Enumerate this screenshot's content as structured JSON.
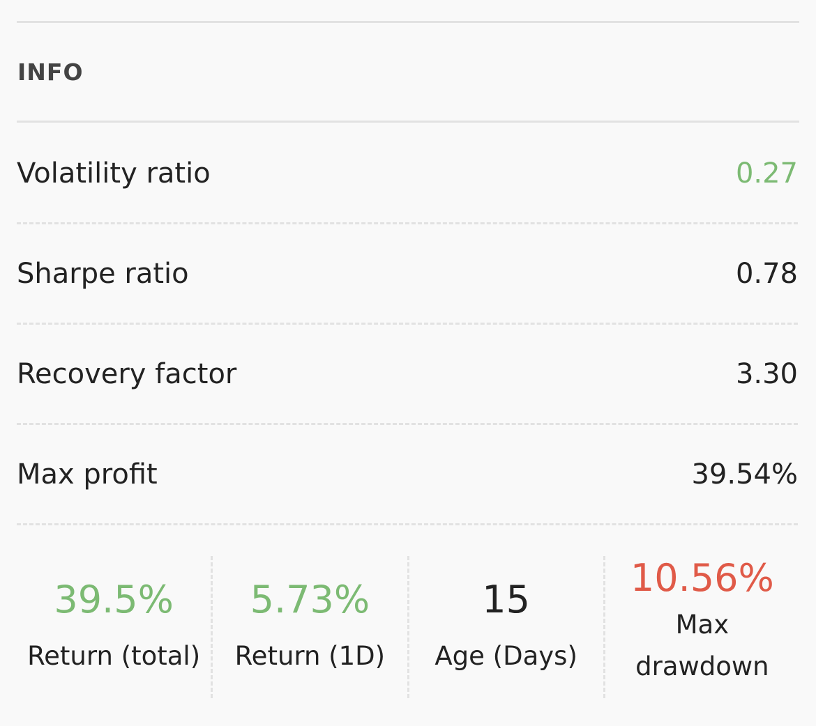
{
  "section": {
    "title": "INFO"
  },
  "rows": [
    {
      "label": "Volatility ratio",
      "value": "0.27"
    },
    {
      "label": "Sharpe ratio",
      "value": "0.78"
    },
    {
      "label": "Recovery factor",
      "value": "3.30"
    },
    {
      "label": "Max profit",
      "value": "39.54%"
    }
  ],
  "stats": [
    {
      "value": "39.5%",
      "label": "Return (total)"
    },
    {
      "value": "5.73%",
      "label": "Return (1D)"
    },
    {
      "value": "15",
      "label": "Age (Days)"
    },
    {
      "value": "10.56%",
      "label": "Max drawdown"
    }
  ]
}
